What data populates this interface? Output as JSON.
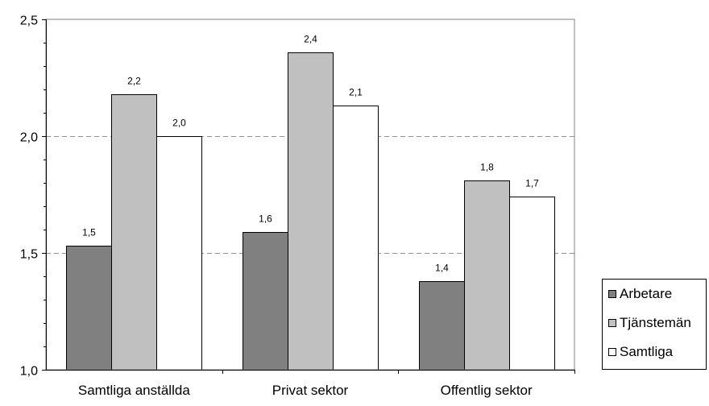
{
  "chart_data": {
    "type": "bar",
    "title": "",
    "xlabel": "",
    "ylabel": "",
    "categories": [
      "Samtliga anställda",
      "Privat sektor",
      "Offentlig sektor"
    ],
    "series": [
      {
        "name": "Arbetare",
        "color": "#808080",
        "values": [
          1.53,
          1.59,
          1.38
        ],
        "labels": [
          "1,5",
          "1,6",
          "1,4"
        ]
      },
      {
        "name": "Tjänstemän",
        "color": "#c0c0c0",
        "values": [
          2.18,
          2.36,
          1.81
        ],
        "labels": [
          "2,2",
          "2,4",
          "1,8"
        ]
      },
      {
        "name": "Samtliga",
        "color": "#ffffff",
        "values": [
          2.0,
          2.13,
          1.74
        ],
        "labels": [
          "2,0",
          "2,1",
          "1,7"
        ]
      }
    ],
    "ylim": [
      1.0,
      2.5
    ],
    "yticks": [
      1.0,
      1.5,
      2.0,
      2.5
    ],
    "ytick_labels": [
      "1,0",
      "1,5",
      "2,0",
      "2,5"
    ],
    "grid": "dashed horizontal",
    "legend_position": "right"
  }
}
